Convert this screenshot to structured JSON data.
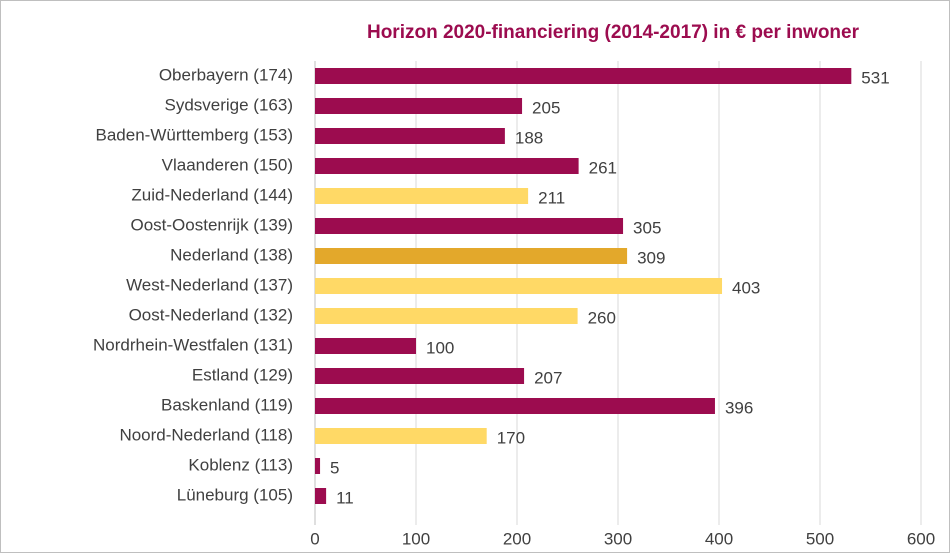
{
  "chart_data": {
    "type": "bar",
    "orientation": "horizontal",
    "title": "Horizon 2020-financiering (2014-2017) in € per inwoner",
    "categories": [
      "Oberbayern (174)",
      "Sydsverige (163)",
      "Baden-Württemberg (153)",
      "Vlaanderen (150)",
      "Zuid-Nederland (144)",
      "Oost-Oostenrijk (139)",
      "Nederland (138)",
      "West-Nederland (137)",
      "Oost-Nederland (132)",
      "Nordrhein-Westfalen (131)",
      "Estland (129)",
      "Baskenland (119)",
      "Noord-Nederland (118)",
      "Koblenz (113)",
      "Lüneburg (105)"
    ],
    "values": [
      531,
      205,
      188,
      261,
      211,
      305,
      309,
      403,
      260,
      100,
      207,
      396,
      170,
      5,
      11
    ],
    "colors": [
      "#9c0c4f",
      "#9c0c4f",
      "#9c0c4f",
      "#9c0c4f",
      "#ffd966",
      "#9c0c4f",
      "#e3a82b",
      "#ffd966",
      "#ffd966",
      "#9c0c4f",
      "#9c0c4f",
      "#9c0c4f",
      "#ffd966",
      "#9c0c4f",
      "#9c0c4f"
    ],
    "xlim": [
      0,
      600
    ],
    "xticks": [
      0,
      100,
      200,
      300,
      400,
      500,
      600
    ],
    "grid": true
  }
}
